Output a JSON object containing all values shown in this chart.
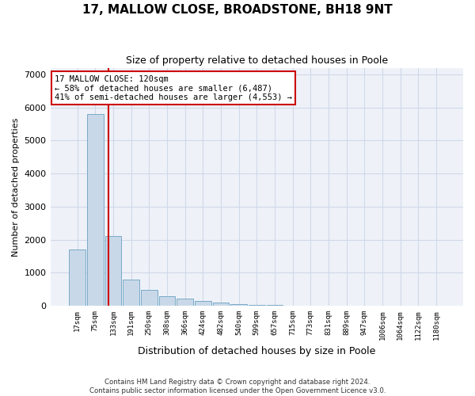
{
  "title": "17, MALLOW CLOSE, BROADSTONE, BH18 9NT",
  "subtitle": "Size of property relative to detached houses in Poole",
  "xlabel": "Distribution of detached houses by size in Poole",
  "ylabel": "Number of detached properties",
  "bar_values": [
    1700,
    5800,
    2100,
    800,
    480,
    280,
    230,
    140,
    95,
    60,
    30,
    20,
    10,
    5,
    3,
    2,
    1,
    1,
    0,
    0,
    0
  ],
  "bar_labels": [
    "17sqm",
    "75sqm",
    "133sqm",
    "191sqm",
    "250sqm",
    "308sqm",
    "366sqm",
    "424sqm",
    "482sqm",
    "540sqm",
    "599sqm",
    "657sqm",
    "715sqm",
    "773sqm",
    "831sqm",
    "889sqm",
    "947sqm",
    "1006sqm",
    "1064sqm",
    "1122sqm",
    "1180sqm"
  ],
  "bar_color": "#c8d8e8",
  "bar_edgecolor": "#7aaac8",
  "vline_x": 1.75,
  "vline_color": "#cc0000",
  "ylim": [
    0,
    7200
  ],
  "yticks": [
    0,
    1000,
    2000,
    3000,
    4000,
    5000,
    6000,
    7000
  ],
  "annotation_text": "17 MALLOW CLOSE: 120sqm\n← 58% of detached houses are smaller (6,487)\n41% of semi-detached houses are larger (4,553) →",
  "annotation_box_color": "#ffffff",
  "annotation_box_edgecolor": "#cc0000",
  "grid_color": "#d0d8e8",
  "background_color": "#eef2f8",
  "footer_line1": "Contains HM Land Registry data © Crown copyright and database right 2024.",
  "footer_line2": "Contains public sector information licensed under the Open Government Licence v3.0."
}
